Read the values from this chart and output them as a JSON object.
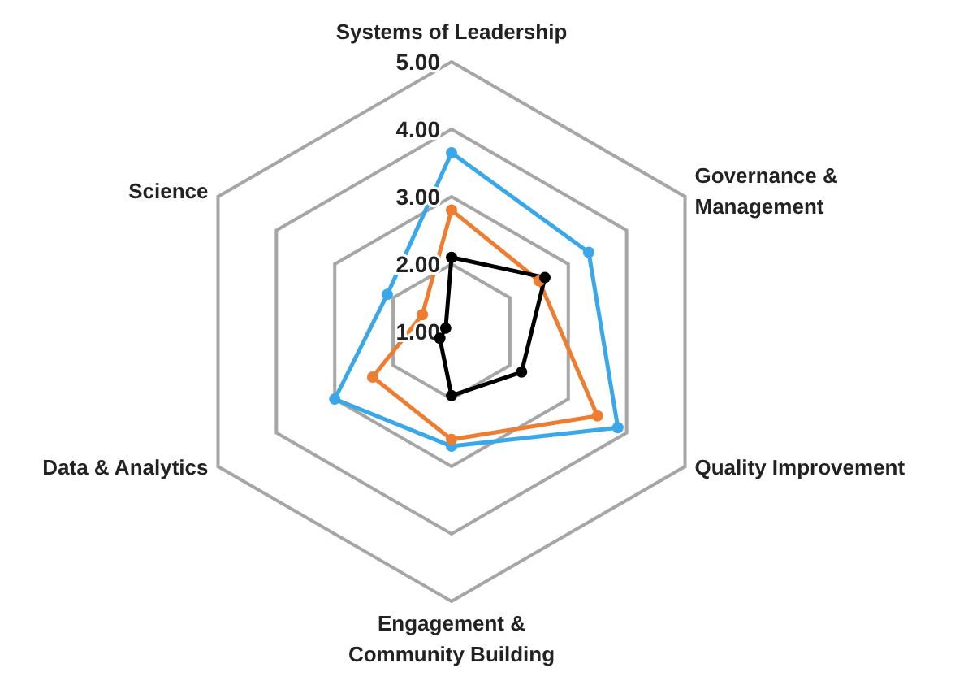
{
  "chart_data": {
    "type": "radar",
    "categories": [
      "Systems of Leadership",
      "Governance & Management",
      "Quality Improvement",
      "Engagement & Community Building",
      "Data & Analytics",
      "Science"
    ],
    "series": [
      {
        "color": "#3aa8e8",
        "values": [
          3.65,
          3.35,
          3.85,
          2.7,
          3.0,
          2.1
        ]
      },
      {
        "color": "#ed7d31",
        "values": [
          2.8,
          2.5,
          3.5,
          2.6,
          2.35,
          1.5
        ]
      },
      {
        "color": "#000000",
        "values": [
          2.1,
          2.6,
          2.2,
          1.95,
          1.2,
          1.1
        ]
      }
    ],
    "ylim": [
      1,
      5
    ],
    "yticks": [
      {
        "value": 1,
        "label": "1.00"
      },
      {
        "value": 2,
        "label": "2.00"
      },
      {
        "value": 3,
        "label": "3.00"
      },
      {
        "value": 4,
        "label": "4.00"
      },
      {
        "value": 5,
        "label": "5.00"
      }
    ],
    "grid": true,
    "marker": "circle",
    "line_style": "solid"
  }
}
